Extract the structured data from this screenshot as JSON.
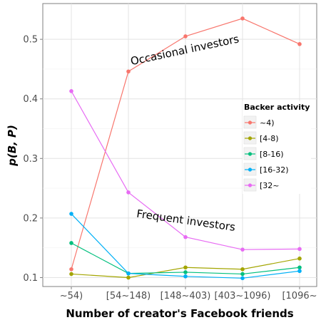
{
  "chart_data": {
    "type": "line",
    "categories": [
      "~54)",
      "[54~148)",
      "[148~403)",
      "[403~1096)",
      "[1096~"
    ],
    "xlabel": "Number of creator's Facebook friends",
    "ylabel": "p(B, P)",
    "ylim": [
      0.085,
      0.56
    ],
    "yticks": [
      0.1,
      0.2,
      0.3,
      0.4,
      0.5
    ],
    "ytick_labels": [
      "0.1",
      "0.2",
      "0.3",
      "0.4",
      "0.5"
    ],
    "grid": true,
    "legend": {
      "title": "Backer activity",
      "position": "right"
    },
    "series": [
      {
        "name": "~4)",
        "color": "#F8766D",
        "values": [
          0.114,
          0.446,
          0.505,
          0.535,
          0.492
        ]
      },
      {
        "name": "[4-8)",
        "color": "#A3A500",
        "values": [
          0.106,
          0.1,
          0.117,
          0.114,
          0.132
        ]
      },
      {
        "name": "[8-16)",
        "color": "#00BF7D",
        "values": [
          0.158,
          0.107,
          0.109,
          0.106,
          0.117
        ]
      },
      {
        "name": "[16-32)",
        "color": "#00B0F6",
        "values": [
          0.207,
          0.107,
          0.102,
          0.099,
          0.111
        ]
      },
      {
        "name": "[32~",
        "color": "#E76BF3",
        "values": [
          0.413,
          0.243,
          0.168,
          0.147,
          0.148
        ]
      }
    ],
    "annotations": [
      {
        "text": "Occasional investors",
        "x": "[148~403)",
        "y": 0.476,
        "angle": -12
      },
      {
        "text": "Frequent investors",
        "x": "[148~403)",
        "y": 0.19,
        "angle": 8
      }
    ]
  }
}
